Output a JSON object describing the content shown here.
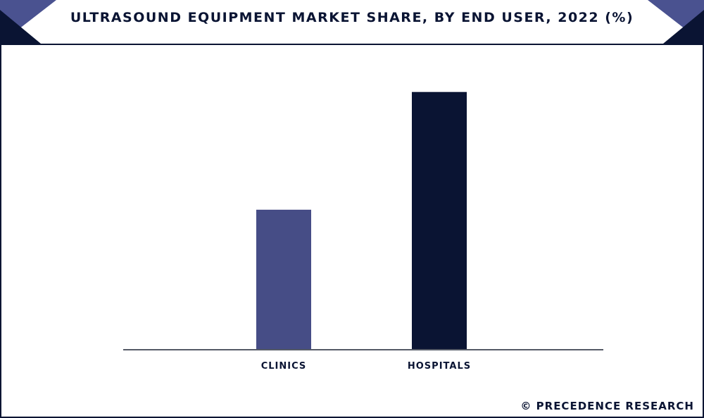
{
  "header": {
    "title": "ULTRASOUND EQUIPMENT MARKET SHARE, BY END USER, 2022 (%)"
  },
  "footer": {
    "credit": "© PRECEDENCE RESEARCH"
  },
  "colors": {
    "navy": "#0a1433",
    "slate_blue": "#464d86",
    "corner_accent": "#4a5290"
  },
  "chart_data": {
    "type": "bar",
    "title": "ULTRASOUND EQUIPMENT MARKET SHARE, BY END USER, 2022 (%)",
    "categories": [
      "CLINICS",
      "HOSPITALS"
    ],
    "values": [
      35.2,
      64.8
    ],
    "bar_colors": [
      "#464d86",
      "#0a1433"
    ],
    "ylim": [
      0,
      72
    ],
    "xlabel": "",
    "ylabel": "",
    "grid": false,
    "legend": "none"
  }
}
